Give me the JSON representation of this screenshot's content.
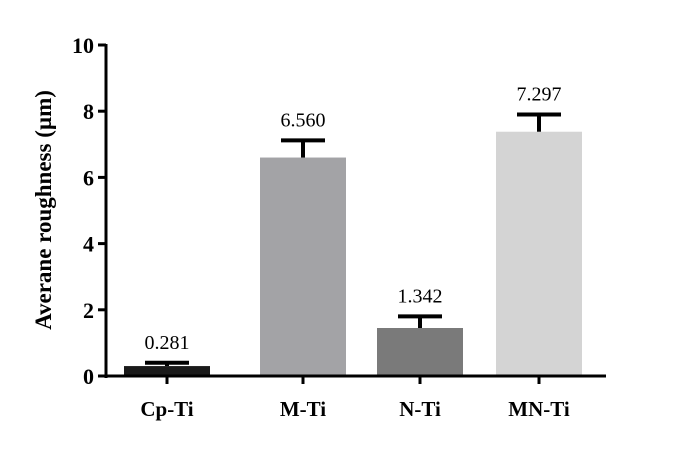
{
  "chart_data": {
    "type": "bar",
    "title": "",
    "xlabel": "",
    "ylabel": "Averane roughness (µm)",
    "ylim": [
      0,
      10
    ],
    "yticks": [
      "0",
      "2",
      "4",
      "6",
      "8",
      "10"
    ],
    "categories": [
      "Cp-Ti",
      "M-Ti",
      "N-Ti",
      "MN-Ti"
    ],
    "values": [
      0.281,
      6.56,
      1.342,
      7.297
    ],
    "bar_heights": [
      0.3,
      6.6,
      1.45,
      7.38
    ],
    "error_top": [
      0.4,
      7.12,
      1.8,
      7.9
    ],
    "value_labels": [
      "0.281",
      "6.560",
      "1.342",
      "7.297"
    ],
    "colors": [
      "#1a1a1a",
      "#a3a3a6",
      "#7a7a7a",
      "#d4d4d4"
    ],
    "grid": false,
    "legend": "none"
  }
}
